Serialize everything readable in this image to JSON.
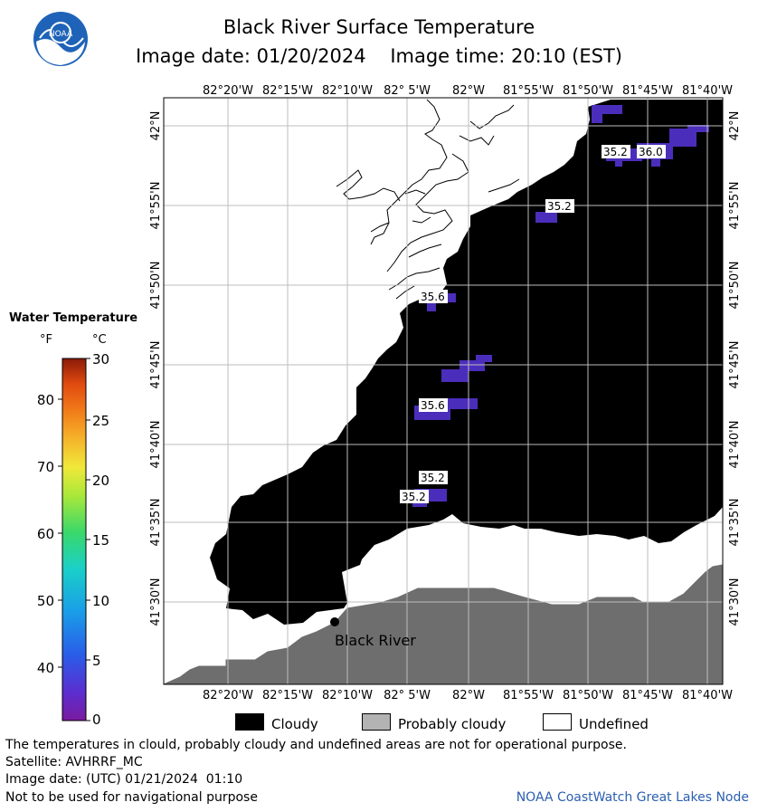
{
  "header": {
    "title": "Black River Surface Temperature",
    "date_line": "Image date: 01/20/2024    Image time: 20:10 (EST)"
  },
  "logo": {
    "text": "NOAA"
  },
  "axes": {
    "lon_labels": [
      "82°20'W",
      "82°15'W",
      "82°10'W",
      "82° 5'W",
      "82°W",
      "81°55'W",
      "81°50'W",
      "81°45'W",
      "81°40'W"
    ],
    "lat_labels": [
      "42°N",
      "41°55'N",
      "41°50'N",
      "41°45'N",
      "41°40'N",
      "41°35'N",
      "41°30'N"
    ]
  },
  "place": {
    "name": "Black River"
  },
  "temperature_labels": [
    "35.2",
    "36.0",
    "35.2",
    "35.6",
    "35.6",
    "35.2",
    "35.2"
  ],
  "legend": {
    "title": "Water Temperature",
    "unit_f": "°F",
    "unit_c": "°C",
    "f_ticks": [
      "80",
      "70",
      "60",
      "50",
      "40"
    ],
    "c_ticks": [
      "30",
      "25",
      "20",
      "15",
      "10",
      "5",
      "0"
    ],
    "colors": [
      "#7a1aa0",
      "#5a2fd0",
      "#2a5ce8",
      "#1a9de8",
      "#1ad0c8",
      "#3ad86a",
      "#a8e83a",
      "#f0e83a",
      "#f5b22a",
      "#f07818",
      "#e04a10",
      "#b02a0a",
      "#8a1a08"
    ]
  },
  "key": {
    "cloudy": "Cloudy",
    "probably_cloudy": "Probably cloudy",
    "undefined": "Undefined",
    "cloudy_color": "#000000",
    "probably_cloudy_color": "#b3b3b3",
    "undefined_color": "#ffffff"
  },
  "footer": {
    "disclaimer": "The temperatures in clould, probably cloudy and undefined areas are not for operational purpose.",
    "satellite": "Satellite: AVHRRF_MC",
    "utc_date": "Image date: (UTC) 01/21/2024  01:10",
    "nav": "Not to be used for navigational purpose",
    "node": "NOAA CoastWatch Great Lakes Node"
  }
}
